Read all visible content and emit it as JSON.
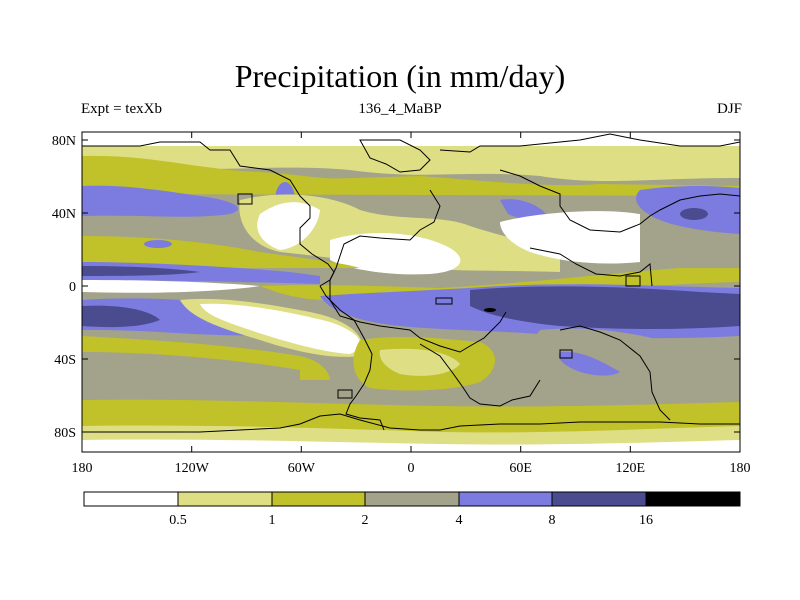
{
  "title": "Precipitation (in mm/day)",
  "subtitle_left": "Expt = texXb",
  "subtitle_center": "136_4_MaBP",
  "subtitle_right": "DJF",
  "x_ticks": [
    "180",
    "120W",
    "60W",
    "0",
    "60E",
    "120E",
    "180"
  ],
  "y_ticks": [
    "80N",
    "40N",
    "0",
    "40S",
    "80S"
  ],
  "colorbar_labels": [
    "0.5",
    "1",
    "2",
    "4",
    "8",
    "16"
  ],
  "colors": {
    "lt_0_5": "#ffffff",
    "c_0_5_1": "#dede84",
    "c_1_2": "#c1c12a",
    "c_2_4": "#a3a28a",
    "c_4_8": "#7c7ce0",
    "c_8_16": "#4b4b90",
    "gt_16": "#000000"
  }
}
